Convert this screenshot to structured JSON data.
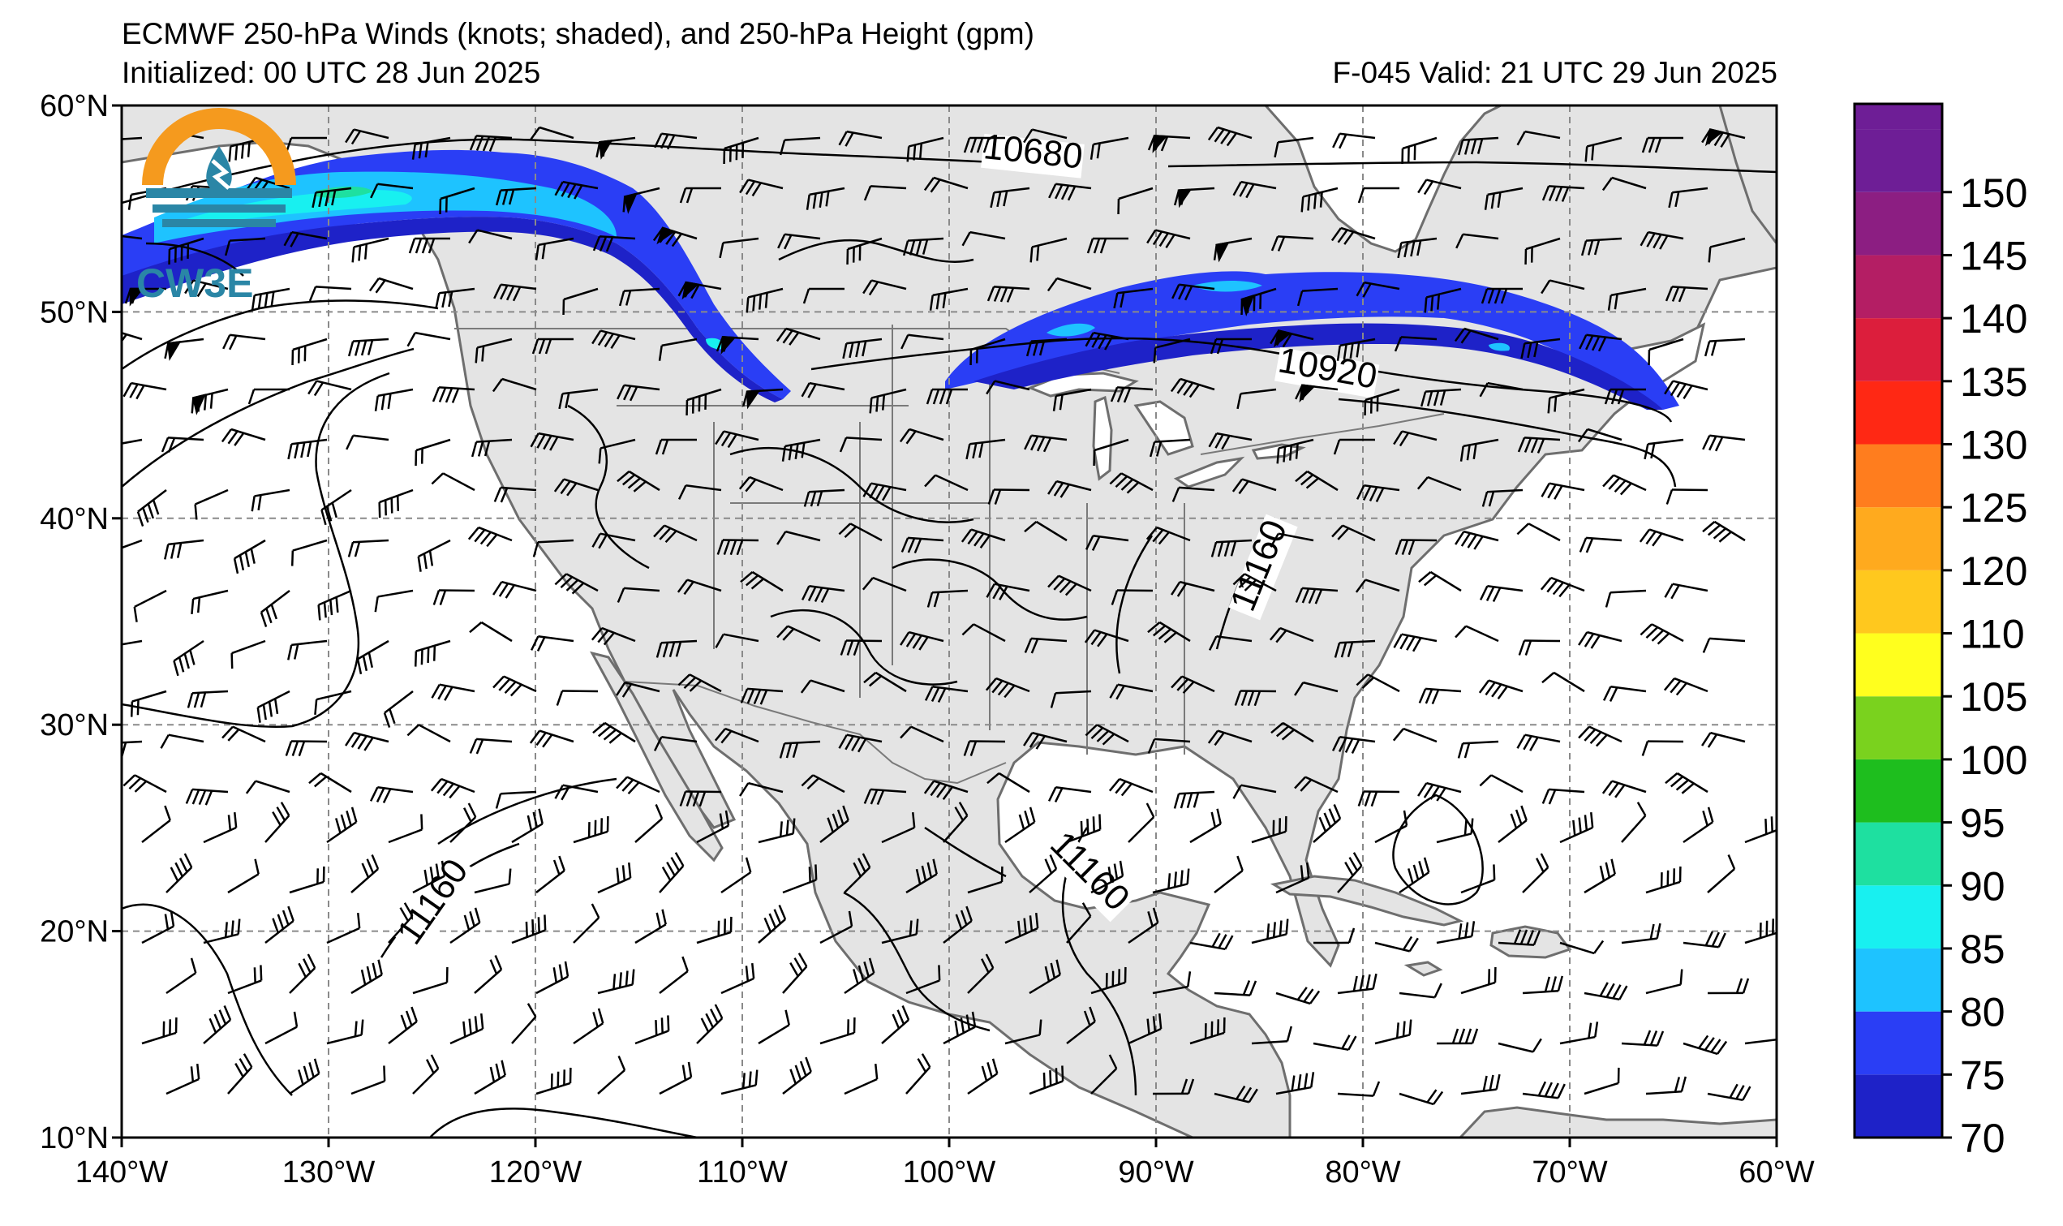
{
  "title": {
    "line1": "ECMWF 250-hPa Winds (knots; shaded), and 250-hPa Height (gpm)",
    "line2": "Initialized: 00 UTC 28 Jun 2025",
    "right": "F-045  Valid: 21 UTC 29 Jun 2025"
  },
  "logo": {
    "text": "CW3E"
  },
  "map": {
    "lon_range": [
      -140,
      -60
    ],
    "lat_range": [
      10,
      60
    ],
    "grid": "dashed",
    "lon_ticks": [
      "140°W",
      "130°W",
      "120°W",
      "110°W",
      "100°W",
      "90°W",
      "80°W",
      "70°W",
      "60°W"
    ],
    "lat_ticks": [
      "60°N",
      "50°N",
      "40°N",
      "30°N",
      "20°N",
      "10°N"
    ],
    "height_contour_labels": [
      {
        "label": "10680",
        "lon": -96,
        "lat": 57.2
      },
      {
        "label": "10920",
        "lon": -81.8,
        "lat": 46.7
      },
      {
        "label": "11160",
        "lon": -84.5,
        "lat": 37.5
      },
      {
        "label": "11160",
        "lon": -93.6,
        "lat": 22.5
      },
      {
        "label": "11160",
        "lon": -124.5,
        "lat": 21.1
      }
    ]
  },
  "colorbar": {
    "levels": [
      70,
      75,
      80,
      85,
      90,
      95,
      100,
      105,
      110,
      120,
      125,
      130,
      135,
      140,
      145,
      150
    ],
    "colors": [
      "#1e22c8",
      "#2a3ef5",
      "#1ec3ff",
      "#18f0f0",
      "#1ee0a0",
      "#1ebe1e",
      "#7ad21e",
      "#ffff1e",
      "#ffc81e",
      "#ffaa1e",
      "#ff7d1e",
      "#ff2814",
      "#dc1e3c",
      "#b41e64",
      "#8c1e82",
      "#6e1e96"
    ],
    "tick_labels": [
      "70",
      "75",
      "80",
      "85",
      "90",
      "95",
      "100",
      "105",
      "110",
      "120",
      "125",
      "130",
      "135",
      "140",
      "145",
      "150"
    ]
  }
}
